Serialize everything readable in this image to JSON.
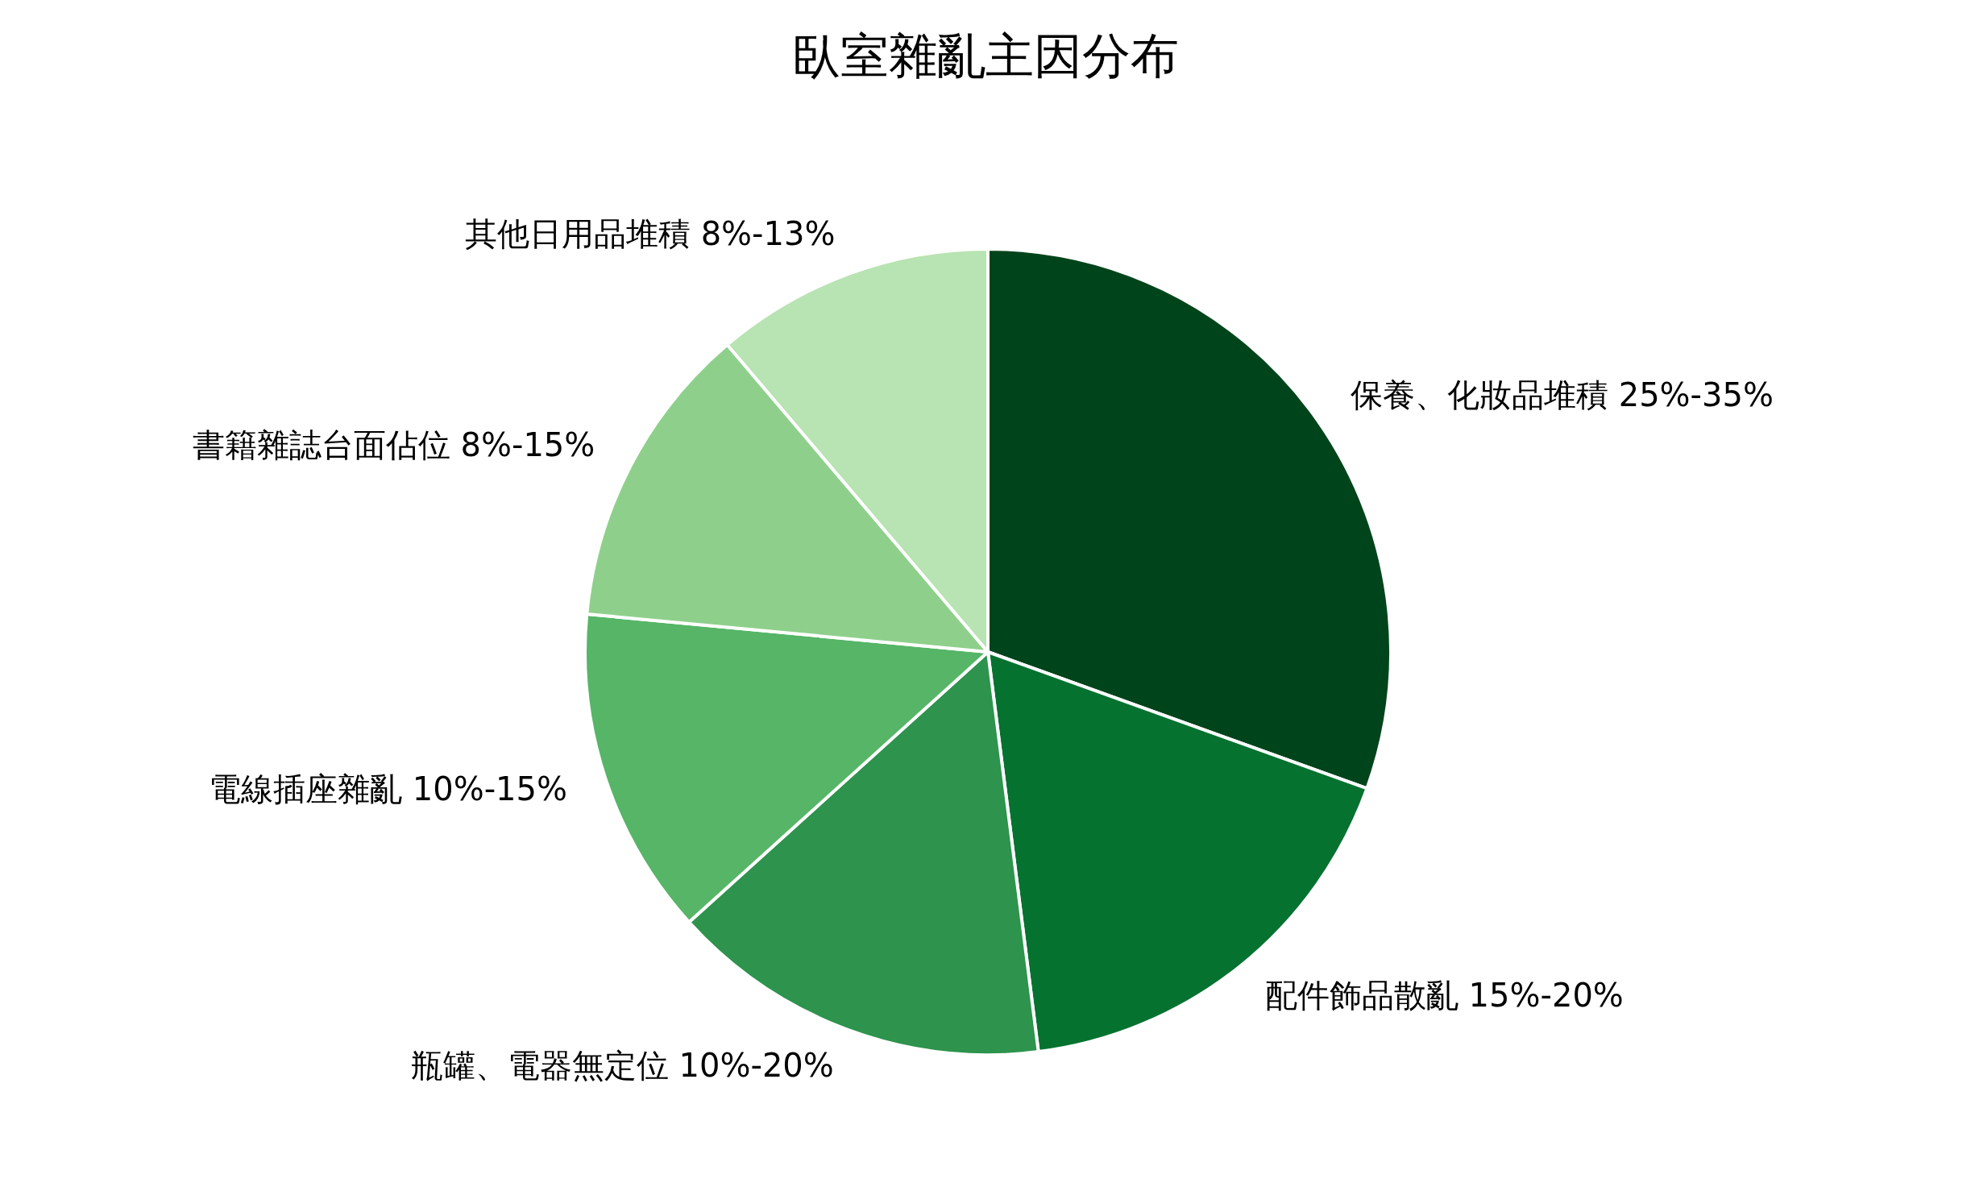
{
  "chart_data": {
    "type": "pie",
    "title": "臥室雜亂主因分布",
    "categories": [
      "保養、化妝品堆積 25%-35%",
      "配件飾品散亂 15%-20%",
      "瓶罐、電器無定位 10%-20%",
      "電線插座雜亂 10%-15%",
      "書籍雜誌台面佔位 8%-15%",
      "其他日用品堆積 8%-13%"
    ],
    "values": [
      30.5,
      17.5,
      15.3,
      13.2,
      12.3,
      11.2
    ],
    "colors": [
      "#00441b",
      "#067230",
      "#2d934d",
      "#56b567",
      "#8ed08b",
      "#b8e3b2"
    ]
  }
}
